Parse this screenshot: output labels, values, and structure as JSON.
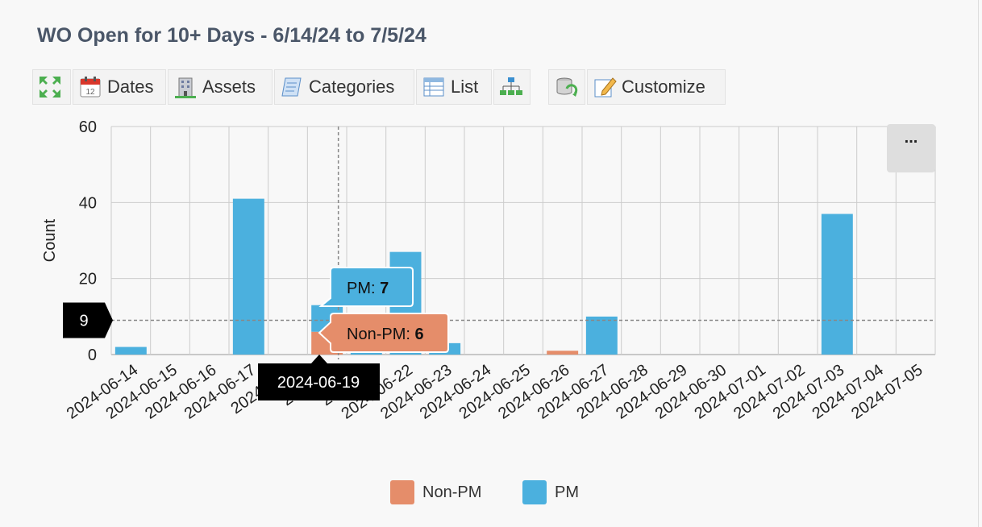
{
  "page": {
    "title": "WO Open for 10+ Days - 6/14/24 to 7/5/24"
  },
  "toolbar": {
    "buttons": [
      {
        "name": "expand-button",
        "icon": "expand-arrows-icon",
        "label": ""
      },
      {
        "name": "dates-button",
        "icon": "calendar-icon",
        "label": "Dates"
      },
      {
        "name": "assets-button",
        "icon": "building-icon",
        "label": "Assets"
      },
      {
        "name": "categories-button",
        "icon": "scroll-icon",
        "label": "Categories"
      },
      {
        "name": "list-button",
        "icon": "list-icon",
        "label": "List"
      },
      {
        "name": "hierarchy-button",
        "icon": "org-chart-icon",
        "label": ""
      },
      {
        "name": "refresh-button",
        "icon": "database-refresh-icon",
        "label": ""
      },
      {
        "name": "customize-button",
        "icon": "edit-icon",
        "label": "Customize"
      }
    ]
  },
  "menu": {
    "more_label": "..."
  },
  "colors": {
    "pm": "#4bb0de",
    "non_pm": "#e58d6a",
    "grid": "#cccccc",
    "crosshair": "#888888"
  },
  "chart_data": {
    "type": "bar",
    "stacked": true,
    "title": "",
    "xlabel": "",
    "ylabel": "Count",
    "ylim": [
      0,
      60
    ],
    "yticks": [
      0,
      20,
      40,
      60
    ],
    "grid": true,
    "legend_position": "bottom-center",
    "categories": [
      "2024-06-14",
      "2024-06-15",
      "2024-06-16",
      "2024-06-17",
      "2024-06-18",
      "2024-06-19",
      "2024-06-20",
      "2024-06-22",
      "2024-06-23",
      "2024-06-24",
      "2024-06-25",
      "2024-06-26",
      "2024-06-27",
      "2024-06-28",
      "2024-06-29",
      "2024-06-30",
      "2024-07-01",
      "2024-07-02",
      "2024-07-03",
      "2024-07-04",
      "2024-07-05"
    ],
    "category_labels": [
      "2024-06-14",
      "2024-06-15",
      "2024-06-16",
      "2024-06-17",
      "2024-06-1",
      "2024-06",
      "2024-06",
      "2024-06-22",
      "2024-06-23",
      "2024-06-24",
      "2024-06-25",
      "2024-06-26",
      "2024-06-27",
      "2024-06-28",
      "2024-06-29",
      "2024-06-30",
      "2024-07-01",
      "2024-07-02",
      "2024-07-03",
      "2024-07-04",
      "2024-07-05"
    ],
    "series": [
      {
        "name": "Non-PM",
        "color": "#e58d6a",
        "values": [
          0,
          0,
          0,
          0,
          0,
          6,
          0,
          0,
          0,
          0,
          0,
          1,
          0,
          0,
          0,
          0,
          0,
          0,
          0,
          0,
          0
        ]
      },
      {
        "name": "PM",
        "color": "#4bb0de",
        "values": [
          2,
          0,
          0,
          41,
          0,
          7,
          1,
          27,
          3,
          0,
          0,
          0,
          10,
          0,
          0,
          0,
          0,
          0,
          37,
          0,
          0
        ]
      }
    ],
    "hover": {
      "category": "2024-06-19",
      "y_value_label": "9",
      "pm_label": "PM: ",
      "pm_value": "7",
      "nonpm_label": "Non-PM: ",
      "nonpm_value": "6"
    }
  }
}
